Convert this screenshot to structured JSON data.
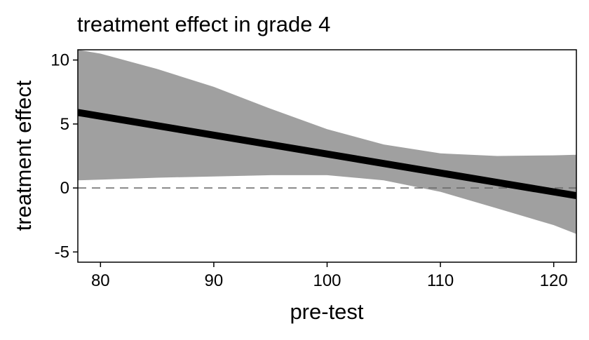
{
  "chart_data": {
    "type": "line",
    "title": "treatment effect in grade 4",
    "xlabel": "pre-test",
    "ylabel": "treatment effect",
    "xlim": [
      78,
      122
    ],
    "ylim": [
      -5.8,
      10.8
    ],
    "xticks": [
      80,
      90,
      100,
      110,
      120
    ],
    "yticks": [
      -5,
      0,
      5,
      10
    ],
    "xtick_labels": [
      "80",
      "90",
      "100",
      "110",
      "120"
    ],
    "ytick_labels": [
      "-5",
      "0",
      "5",
      "10"
    ],
    "grid": false,
    "reference_line": {
      "y": 0,
      "style": "dashed"
    },
    "series": [
      {
        "kind": "line",
        "x": [
          78,
          122
        ],
        "y": [
          5.9,
          -0.6
        ]
      }
    ],
    "band": {
      "x": [
        78,
        80,
        85,
        90,
        95,
        100,
        105,
        110,
        115,
        120,
        122
      ],
      "lower": [
        0.6,
        0.65,
        0.8,
        0.9,
        1.0,
        1.0,
        0.6,
        -0.3,
        -1.6,
        -2.9,
        -3.6
      ],
      "upper": [
        10.8,
        10.5,
        9.3,
        7.9,
        6.2,
        4.6,
        3.4,
        2.7,
        2.5,
        2.55,
        2.6
      ]
    },
    "colors": {
      "band": "#a0a0a0",
      "line": "#000000",
      "reference": "#666666"
    }
  }
}
